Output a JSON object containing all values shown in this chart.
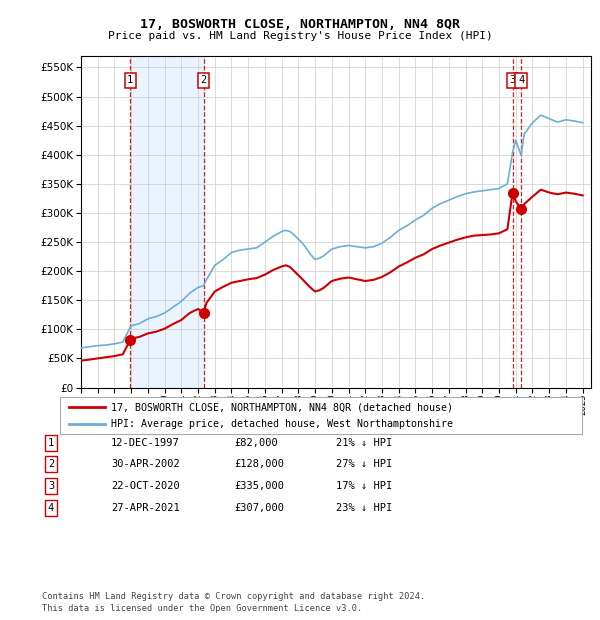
{
  "title": "17, BOSWORTH CLOSE, NORTHAMPTON, NN4 8QR",
  "subtitle": "Price paid vs. HM Land Registry's House Price Index (HPI)",
  "ytick_values": [
    0,
    50000,
    100000,
    150000,
    200000,
    250000,
    300000,
    350000,
    400000,
    450000,
    500000,
    550000
  ],
  "ylim": [
    0,
    570000
  ],
  "hpi_color": "#6baed6",
  "price_color": "#cc0000",
  "background_color": "#ffffff",
  "grid_color": "#cccccc",
  "transactions": [
    {
      "num": 1,
      "date": "12-DEC-1997",
      "price": 82000,
      "year": 1997.95,
      "pct": "21% ↓ HPI"
    },
    {
      "num": 2,
      "date": "30-APR-2002",
      "price": 128000,
      "year": 2002.33,
      "pct": "27% ↓ HPI"
    },
    {
      "num": 3,
      "date": "22-OCT-2020",
      "price": 335000,
      "year": 2020.81,
      "pct": "17% ↓ HPI"
    },
    {
      "num": 4,
      "date": "27-APR-2021",
      "price": 307000,
      "year": 2021.32,
      "pct": "23% ↓ HPI"
    }
  ],
  "legend_line1": "17, BOSWORTH CLOSE, NORTHAMPTON, NN4 8QR (detached house)",
  "legend_line2": "HPI: Average price, detached house, West Northamptonshire",
  "footnote1": "Contains HM Land Registry data © Crown copyright and database right 2024.",
  "footnote2": "This data is licensed under the Open Government Licence v3.0.",
  "xmin": 1995.0,
  "xmax": 2025.5,
  "hpi_x": [
    1995.0,
    1995.5,
    1996.0,
    1996.5,
    1997.0,
    1997.5,
    1997.95,
    1998.0,
    1998.5,
    1999.0,
    1999.5,
    2000.0,
    2000.5,
    2001.0,
    2001.5,
    2002.0,
    2002.33,
    2002.5,
    2003.0,
    2003.5,
    2004.0,
    2004.5,
    2005.0,
    2005.5,
    2006.0,
    2006.5,
    2007.0,
    2007.25,
    2007.5,
    2007.75,
    2008.0,
    2008.25,
    2008.5,
    2008.75,
    2009.0,
    2009.25,
    2009.5,
    2009.75,
    2010.0,
    2010.5,
    2011.0,
    2011.5,
    2012.0,
    2012.5,
    2013.0,
    2013.5,
    2014.0,
    2014.5,
    2015.0,
    2015.5,
    2016.0,
    2016.5,
    2017.0,
    2017.5,
    2018.0,
    2018.5,
    2019.0,
    2019.5,
    2020.0,
    2020.5,
    2020.81,
    2021.0,
    2021.32,
    2021.5,
    2022.0,
    2022.5,
    2023.0,
    2023.5,
    2024.0,
    2024.5,
    2025.0
  ],
  "hpi_y": [
    68000,
    70000,
    72000,
    73000,
    75000,
    78000,
    104000,
    106000,
    110000,
    118000,
    122000,
    128000,
    138000,
    148000,
    162000,
    172000,
    175000,
    185000,
    210000,
    220000,
    232000,
    236000,
    238000,
    240000,
    250000,
    260000,
    268000,
    270000,
    268000,
    262000,
    255000,
    248000,
    238000,
    228000,
    220000,
    222000,
    226000,
    232000,
    238000,
    242000,
    244000,
    242000,
    240000,
    242000,
    248000,
    258000,
    270000,
    278000,
    288000,
    296000,
    308000,
    316000,
    322000,
    328000,
    333000,
    336000,
    338000,
    340000,
    342000,
    350000,
    404000,
    425000,
    399000,
    435000,
    455000,
    468000,
    462000,
    456000,
    460000,
    458000,
    455000
  ],
  "price_x": [
    1995.0,
    1995.5,
    1996.0,
    1996.5,
    1997.0,
    1997.5,
    1997.95,
    1998.0,
    1998.5,
    1999.0,
    1999.5,
    2000.0,
    2000.5,
    2001.0,
    2001.5,
    2002.0,
    2002.33,
    2002.5,
    2003.0,
    2003.5,
    2004.0,
    2004.5,
    2005.0,
    2005.5,
    2006.0,
    2006.5,
    2007.0,
    2007.25,
    2007.5,
    2007.75,
    2008.0,
    2008.25,
    2008.5,
    2008.75,
    2009.0,
    2009.25,
    2009.5,
    2009.75,
    2010.0,
    2010.5,
    2011.0,
    2011.5,
    2012.0,
    2012.5,
    2013.0,
    2013.5,
    2014.0,
    2014.5,
    2015.0,
    2015.5,
    2016.0,
    2016.5,
    2017.0,
    2017.5,
    2018.0,
    2018.5,
    2019.0,
    2019.5,
    2020.0,
    2020.5,
    2020.81,
    2021.0,
    2021.32,
    2021.5,
    2022.0,
    2022.5,
    2023.0,
    2023.5,
    2024.0,
    2024.5,
    2025.0
  ],
  "price_y": [
    46000,
    48000,
    50000,
    52000,
    54000,
    57000,
    82000,
    84000,
    87000,
    93000,
    96000,
    101000,
    109000,
    116000,
    128000,
    135000,
    128000,
    145000,
    165000,
    173000,
    180000,
    183000,
    186000,
    188000,
    194000,
    202000,
    208000,
    210000,
    207000,
    200000,
    193000,
    186000,
    178000,
    171000,
    165000,
    167000,
    171000,
    177000,
    183000,
    187000,
    189000,
    186000,
    183000,
    185000,
    190000,
    198000,
    208000,
    215000,
    223000,
    229000,
    238000,
    244000,
    249000,
    254000,
    258000,
    261000,
    262000,
    263000,
    265000,
    272000,
    335000,
    320000,
    307000,
    315000,
    328000,
    340000,
    335000,
    332000,
    335000,
    333000,
    330000
  ]
}
